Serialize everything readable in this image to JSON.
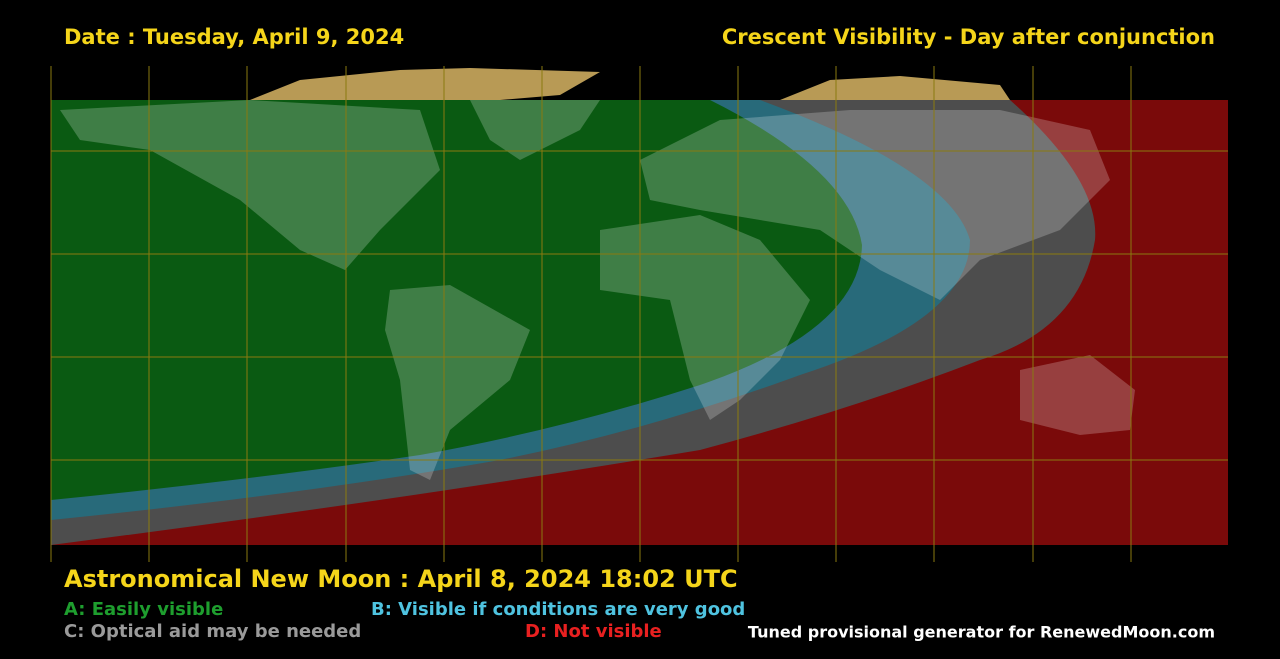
{
  "header": {
    "date": "Date : Tuesday, April 9, 2024",
    "title": "Crescent Visibility - Day after conjunction"
  },
  "footer": {
    "new_moon": "Astronomical New Moon : April 8, 2024 18:02 UTC",
    "legend": [
      "A: Easily visible",
      "B: Visible if conditions are very good",
      "C: Optical aid may be needed",
      "D: Not visible"
    ],
    "credit": "Tuned provisional generator for RenewedMoon.com"
  }
}
